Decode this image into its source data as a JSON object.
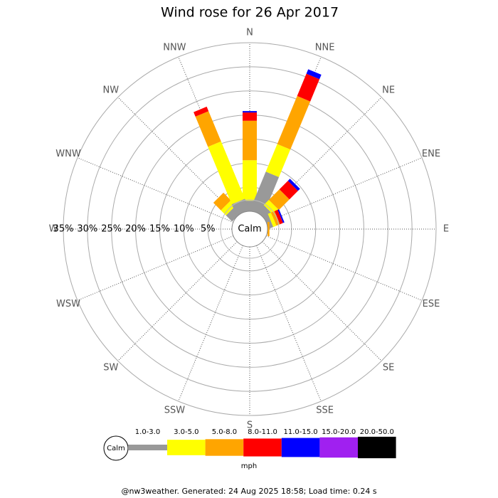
{
  "chart_data": {
    "type": "windrose",
    "title": "Wind rose for 26 Apr 2017",
    "categories": [
      "N",
      "NNE",
      "NE",
      "ENE",
      "E",
      "ESE",
      "SE",
      "SSE",
      "S",
      "SSW",
      "SW",
      "WSW",
      "W",
      "WNW",
      "NW",
      "NNW"
    ],
    "ylim": [
      0,
      35
    ],
    "yticks": [
      {
        "value": 5,
        "label": "5%"
      },
      {
        "value": 10,
        "label": "10%"
      },
      {
        "value": 15,
        "label": "15%"
      },
      {
        "value": 20,
        "label": "20%"
      },
      {
        "value": 25,
        "label": "25%"
      },
      {
        "value": 30,
        "label": "30%"
      },
      {
        "value": 35,
        "label": "35%"
      }
    ],
    "calm_label": "Calm",
    "unit_label": "mph",
    "series": [
      {
        "name": "1.0-3.0",
        "color": "#999999",
        "values": [
          2.2,
          8.6,
          1.9,
          1.0,
          0,
          0,
          0,
          0,
          0,
          0,
          0,
          0,
          0,
          0,
          1.8,
          2.5
        ]
      },
      {
        "name": "3.0-5.0",
        "color": "#ffff00",
        "values": [
          8.4,
          6.2,
          1.5,
          0.7,
          0,
          0,
          0,
          0,
          0,
          0,
          0,
          0,
          0,
          0,
          1.5,
          12.9
        ]
      },
      {
        "name": "5.0-8.0",
        "color": "#ffa500",
        "values": [
          8.2,
          10.8,
          3.1,
          0.8,
          0.4,
          0,
          0,
          0,
          0,
          0,
          0,
          0,
          0,
          0,
          2.2,
          6.8
        ]
      },
      {
        "name": "8.0-11.0",
        "color": "#ff0000",
        "values": [
          1.7,
          5.0,
          2.5,
          0.7,
          0,
          0,
          0,
          0,
          0,
          0,
          0,
          0,
          0,
          0,
          0,
          1.0
        ]
      },
      {
        "name": "11.0-15.0",
        "color": "#0000ff",
        "values": [
          0.3,
          1.0,
          0.6,
          0.3,
          0,
          0,
          0,
          0,
          0,
          0,
          0,
          0,
          0,
          0,
          0,
          0
        ]
      },
      {
        "name": "15.0-20.0",
        "color": "#a020f0",
        "values": [
          0,
          0,
          0,
          0,
          0,
          0,
          0,
          0,
          0,
          0,
          0,
          0,
          0,
          0,
          0,
          0
        ]
      },
      {
        "name": "20.0-50.0",
        "color": "#000000",
        "values": [
          0,
          0,
          0,
          0,
          0,
          0,
          0,
          0,
          0,
          0,
          0,
          0,
          0,
          0,
          0,
          0
        ]
      }
    ],
    "footer": "@nw3weather. Generated: 24 Aug 2025 18:58; Load time: 0.24 s"
  }
}
